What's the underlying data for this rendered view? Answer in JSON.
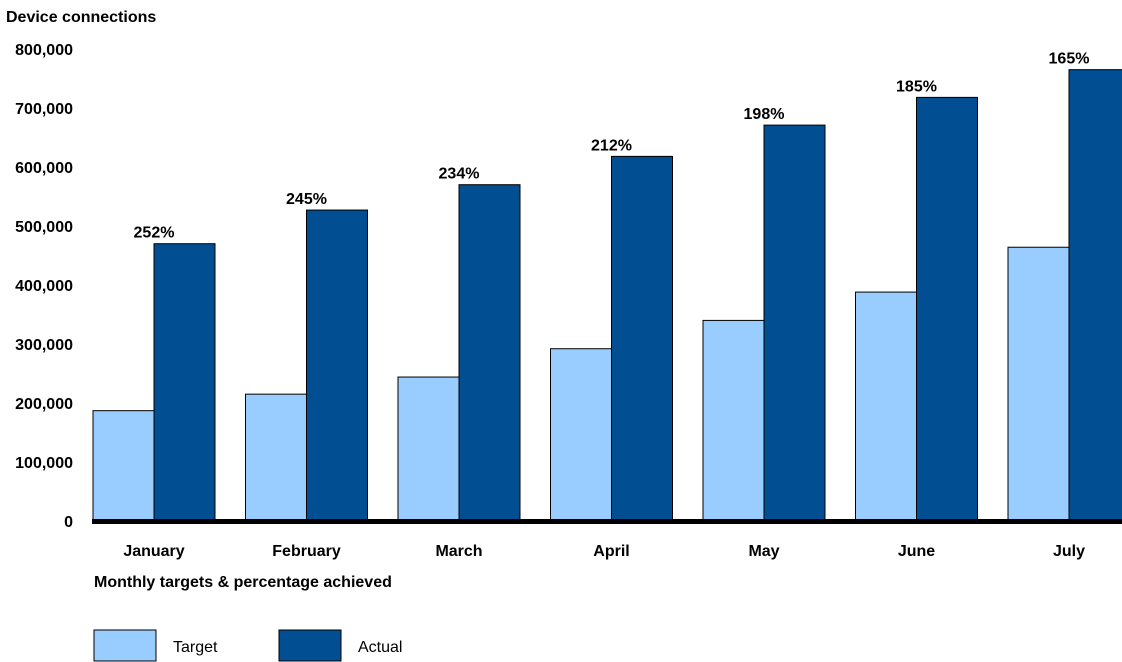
{
  "chart_data": {
    "type": "bar",
    "title": "",
    "ylabel": "Device connections",
    "xlabel": "Monthly targets & percentage achieved",
    "categories": [
      "January",
      "February",
      "March",
      "April",
      "May",
      "June",
      "July"
    ],
    "series": [
      {
        "name": "Target",
        "color": "#99ccff",
        "values": [
          187000,
          215000,
          244000,
          292000,
          340000,
          388000,
          464000
        ]
      },
      {
        "name": "Actual",
        "color": "#024e92",
        "values": [
          470000,
          527000,
          570000,
          618000,
          671000,
          718000,
          765000
        ]
      }
    ],
    "annotations": [
      "252%",
      "245%",
      "234%",
      "212%",
      "198%",
      "185%",
      "165%"
    ],
    "yticks": [
      "0",
      "100,000",
      "200,000",
      "300,000",
      "400,000",
      "500,000",
      "600,000",
      "700,000",
      "800,000"
    ],
    "ylim": [
      0,
      800000
    ],
    "grid": false,
    "legend": {
      "position": "bottom-left",
      "entries": [
        "Target",
        "Actual"
      ]
    }
  }
}
